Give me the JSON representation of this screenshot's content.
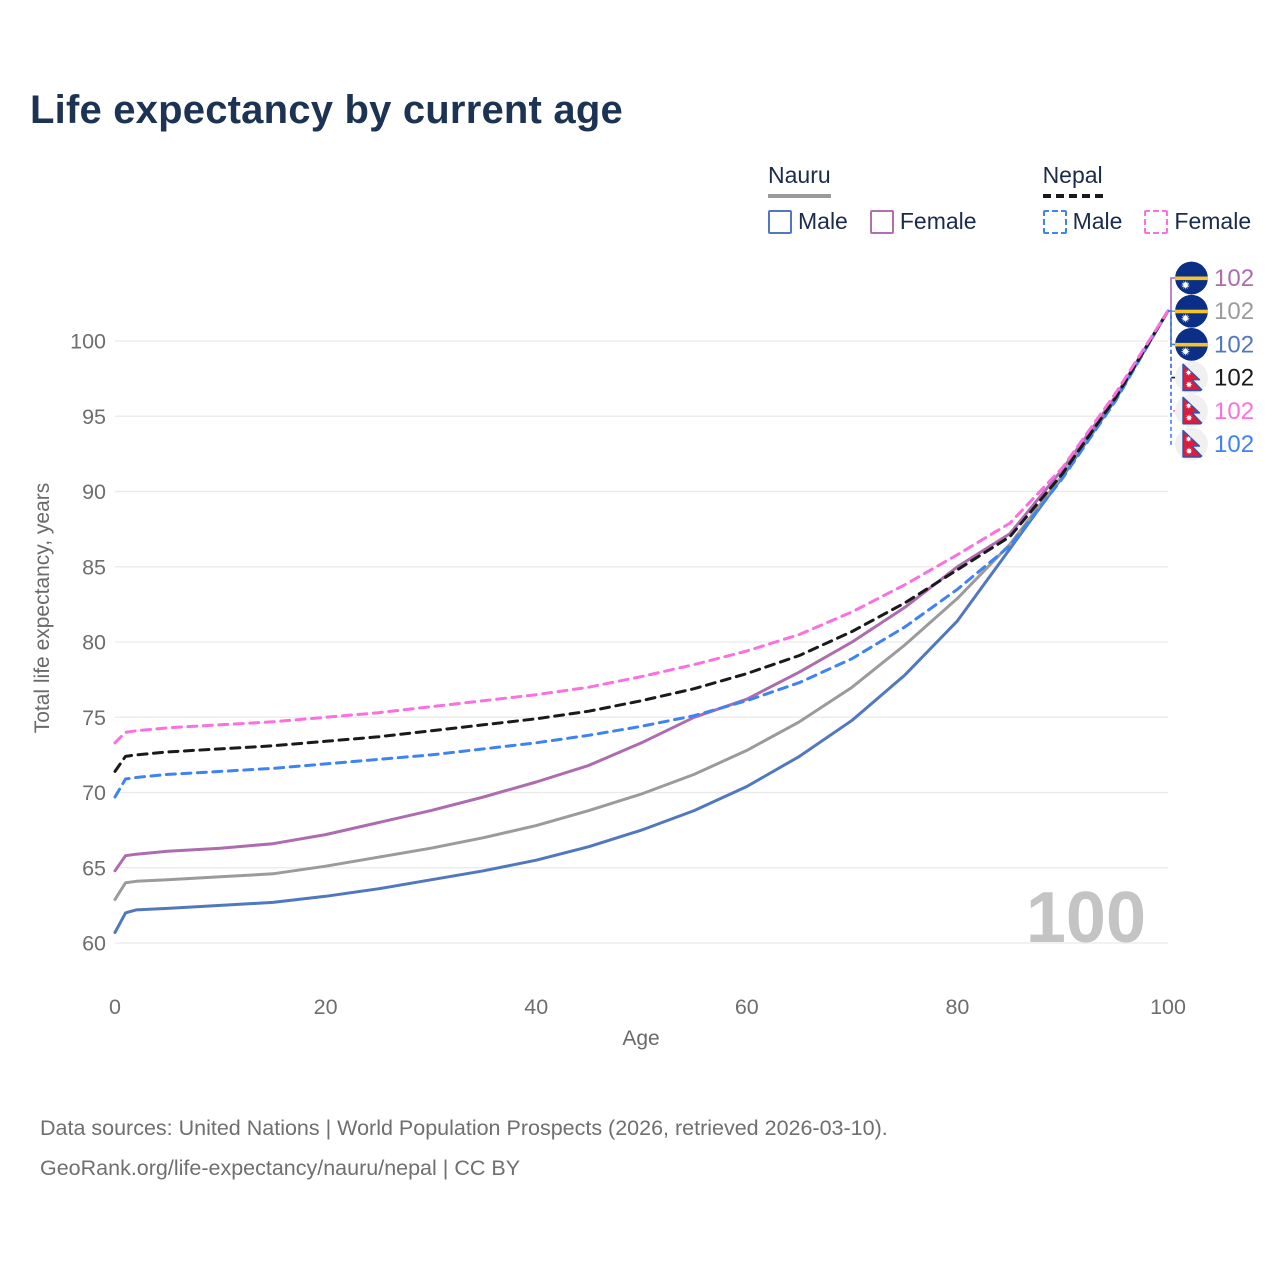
{
  "title": "Life expectancy by current age",
  "legend": {
    "groups": [
      {
        "title": "Nauru",
        "line_style": "solid",
        "underline_color": "#9a9a9a",
        "items": [
          {
            "label": "Male",
            "color": "#5178bf",
            "dashed": false
          },
          {
            "label": "Female",
            "color": "#b06fb2",
            "dashed": false
          }
        ]
      },
      {
        "title": "Nepal",
        "line_style": "dashed",
        "underline_color": "#1a1a1a",
        "items": [
          {
            "label": "Male",
            "color": "#3f83f2",
            "dashed": true
          },
          {
            "label": "Female",
            "color": "#fb70df",
            "dashed": true
          }
        ]
      }
    ]
  },
  "watermark": "100",
  "footer": {
    "line1": "Data sources: United Nations | World Population Prospects (2026, retrieved 2026-03-10).",
    "line2": "GeoRank.org/life-expectancy/nauru/nepal | CC BY"
  },
  "chart_data": {
    "type": "line",
    "title": "Life expectancy by current age",
    "xlabel": "Age",
    "ylabel": "Total life expectancy, years",
    "xlim": [
      0,
      100
    ],
    "ylim": [
      60,
      102
    ],
    "x_ticks": [
      0,
      20,
      40,
      60,
      80,
      100
    ],
    "y_ticks": [
      60,
      65,
      70,
      75,
      80,
      85,
      90,
      95,
      100
    ],
    "grid": "horizontal",
    "gridline_color": "#e9e9e9",
    "tick_label_color": "#6e6e6e",
    "watermark": "100",
    "watermark_color": "#c4c4c4",
    "ages": [
      0,
      1,
      2,
      5,
      10,
      15,
      20,
      25,
      30,
      35,
      40,
      45,
      50,
      55,
      60,
      65,
      70,
      75,
      80,
      85,
      90,
      95,
      100
    ],
    "series": [
      {
        "id": "nauru-male",
        "country": "Nauru",
        "sex": "Male",
        "color": "#5178bf",
        "dash": "solid",
        "end_label": "102",
        "values": [
          60.7,
          62.0,
          62.2,
          62.3,
          62.5,
          62.7,
          63.1,
          63.6,
          64.2,
          64.8,
          65.5,
          66.4,
          67.5,
          68.8,
          70.4,
          72.4,
          74.8,
          77.8,
          81.4,
          86.2,
          91.0,
          96.1,
          102
        ]
      },
      {
        "id": "nauru-total",
        "country": "Nauru",
        "sex": "Both sexes",
        "color": "#9b9b9b",
        "dash": "solid",
        "end_label": "102",
        "values": [
          62.9,
          64.0,
          64.1,
          64.2,
          64.4,
          64.6,
          65.1,
          65.7,
          66.3,
          67.0,
          67.8,
          68.8,
          69.9,
          71.2,
          72.8,
          74.7,
          77.0,
          79.8,
          82.9,
          86.5,
          91.1,
          96.2,
          102
        ]
      },
      {
        "id": "nauru-female",
        "country": "Nauru",
        "sex": "Female",
        "color": "#ad6cae",
        "dash": "solid",
        "end_label": "102",
        "values": [
          64.8,
          65.8,
          65.9,
          66.1,
          66.3,
          66.6,
          67.2,
          68.0,
          68.8,
          69.7,
          70.7,
          71.8,
          73.3,
          75.0,
          76.2,
          78.0,
          80.0,
          82.3,
          85.0,
          87.2,
          91.5,
          96.3,
          102
        ]
      },
      {
        "id": "nepal-male",
        "country": "Nepal",
        "sex": "Male",
        "color": "#3f83f2",
        "dash": "dashed",
        "end_label": "102",
        "values": [
          69.7,
          70.9,
          71.0,
          71.2,
          71.4,
          71.6,
          71.9,
          72.2,
          72.5,
          72.9,
          73.3,
          73.8,
          74.4,
          75.1,
          76.1,
          77.3,
          78.9,
          81.0,
          83.5,
          86.4,
          90.9,
          96.0,
          102
        ]
      },
      {
        "id": "nepal-total",
        "country": "Nepal",
        "sex": "Both sexes",
        "color": "#1a1a1a",
        "dash": "dashed",
        "end_label": "102",
        "values": [
          71.4,
          72.4,
          72.5,
          72.7,
          72.9,
          73.1,
          73.4,
          73.7,
          74.1,
          74.5,
          74.9,
          75.4,
          76.1,
          76.9,
          77.9,
          79.1,
          80.7,
          82.6,
          84.8,
          87.0,
          91.2,
          96.2,
          102
        ]
      },
      {
        "id": "nepal-female",
        "country": "Nepal",
        "sex": "Female",
        "color": "#fb70df",
        "dash": "dashed",
        "end_label": "102",
        "values": [
          73.3,
          74.0,
          74.1,
          74.3,
          74.5,
          74.7,
          75.0,
          75.3,
          75.7,
          76.1,
          76.5,
          77.0,
          77.7,
          78.5,
          79.4,
          80.5,
          82.0,
          83.8,
          85.8,
          87.9,
          91.6,
          96.5,
          102
        ]
      }
    ],
    "right_annotations": [
      {
        "series": "nauru-female",
        "flag": "nauru",
        "label": "102"
      },
      {
        "series": "nauru-total",
        "flag": "nauru",
        "label": "102"
      },
      {
        "series": "nauru-male",
        "flag": "nauru",
        "label": "102"
      },
      {
        "series": "nepal-total",
        "flag": "nepal",
        "label": "102"
      },
      {
        "series": "nepal-female",
        "flag": "nepal",
        "label": "102"
      },
      {
        "series": "nepal-male",
        "flag": "nepal",
        "label": "102"
      }
    ],
    "flag_colors": {
      "nauru_blue": "#0b2f87",
      "nauru_yellow": "#f7c427",
      "nepal_crimson": "#dc1c3c",
      "nepal_border": "#2b55b4",
      "nepal_bg": "#f0f0f0"
    }
  }
}
